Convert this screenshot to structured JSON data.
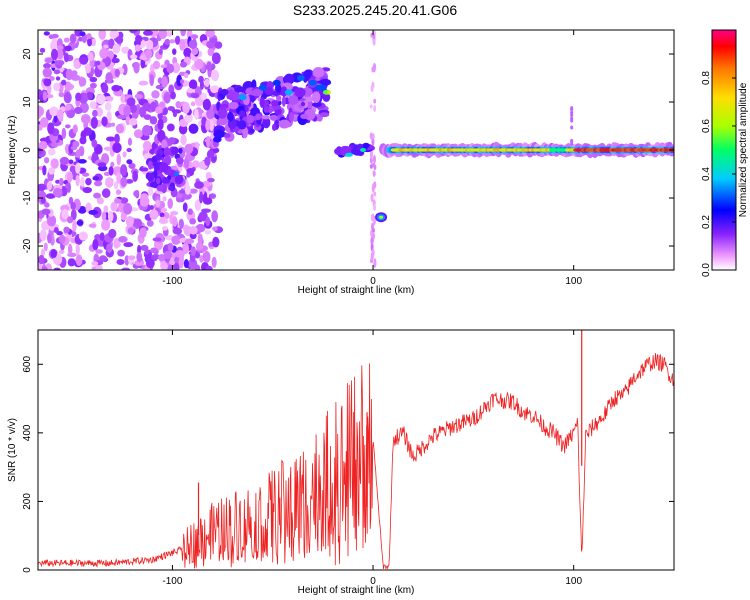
{
  "title": "S233.2025.245.20.41.G06",
  "chart_data": [
    {
      "type": "heatmap",
      "title": "S233.2025.245.20.41.G06",
      "xlabel": "Height of straight line (km)",
      "ylabel": "Frequency (Hz)",
      "xlim": [
        -167,
        150
      ],
      "ylim": [
        -25,
        25
      ],
      "xticks": [
        -100,
        0,
        100
      ],
      "yticks": [
        -20,
        -10,
        0,
        10,
        20
      ],
      "colorbar": {
        "label": "Normalized spectral amplitude",
        "range": [
          0,
          1
        ],
        "ticks": [
          0.0,
          0.2,
          0.4,
          0.6,
          0.8
        ],
        "tick_labels": [
          "0.0",
          "0.2",
          "0.4",
          "0.6",
          "0.8"
        ],
        "colors": [
          "#ffffff",
          "#ee99ff",
          "#8822ff",
          "#0000ff",
          "#00ccff",
          "#00ff66",
          "#aaff00",
          "#ffdd00",
          "#ff7700",
          "#ff0000",
          "#ff0088"
        ]
      },
      "features": [
        {
          "x_range": [
            -167,
            -78
          ],
          "freq_range": [
            -25,
            25
          ],
          "level": 0.15
        },
        {
          "x_range": [
            -78,
            -17
          ],
          "freq_range": [
            5,
            20
          ],
          "level": 0.3
        },
        {
          "x_range": [
            -20,
            0
          ],
          "freq_range": [
            -2,
            2
          ],
          "level": 0.3
        },
        {
          "x_range": [
            1,
            10
          ],
          "freq_range": [
            -15,
            -12
          ],
          "level": 0.4
        },
        {
          "x_range": [
            5,
            150
          ],
          "freq_range": [
            -1,
            1
          ],
          "level": 0.85
        }
      ]
    },
    {
      "type": "line",
      "xlabel": "Height of straight line (km)",
      "ylabel": "SNR (10 * v/v)",
      "xlim": [
        -167,
        150
      ],
      "ylim": [
        0,
        700
      ],
      "xticks": [
        -100,
        0,
        100
      ],
      "yticks": [
        0,
        200,
        400,
        600
      ],
      "color": "#ee2222",
      "series": [
        {
          "x": [
            -167,
            -150,
            -130,
            -110,
            -95,
            -85,
            -75,
            -65,
            -55,
            -45,
            -35,
            -25,
            -15,
            -10,
            -5,
            0,
            5,
            8,
            10,
            15,
            20,
            25,
            30,
            40,
            50,
            60,
            70,
            75,
            80,
            85,
            90,
            95,
            100,
            102,
            104,
            106,
            110,
            115,
            120,
            125,
            130,
            135,
            140,
            145,
            150
          ],
          "y": [
            20,
            20,
            20,
            30,
            60,
            100,
            120,
            140,
            150,
            180,
            210,
            250,
            290,
            320,
            350,
            380,
            10,
            10,
            380,
            400,
            330,
            360,
            390,
            420,
            440,
            500,
            490,
            460,
            450,
            420,
            400,
            360,
            400,
            430,
            20,
            390,
            420,
            450,
            500,
            510,
            560,
            590,
            610,
            600,
            550
          ],
          "spikes": [
            {
              "x": 104,
              "y": 760
            },
            {
              "x": -87,
              "y": 255
            },
            {
              "x": -3,
              "y": 460
            }
          ]
        }
      ]
    }
  ]
}
